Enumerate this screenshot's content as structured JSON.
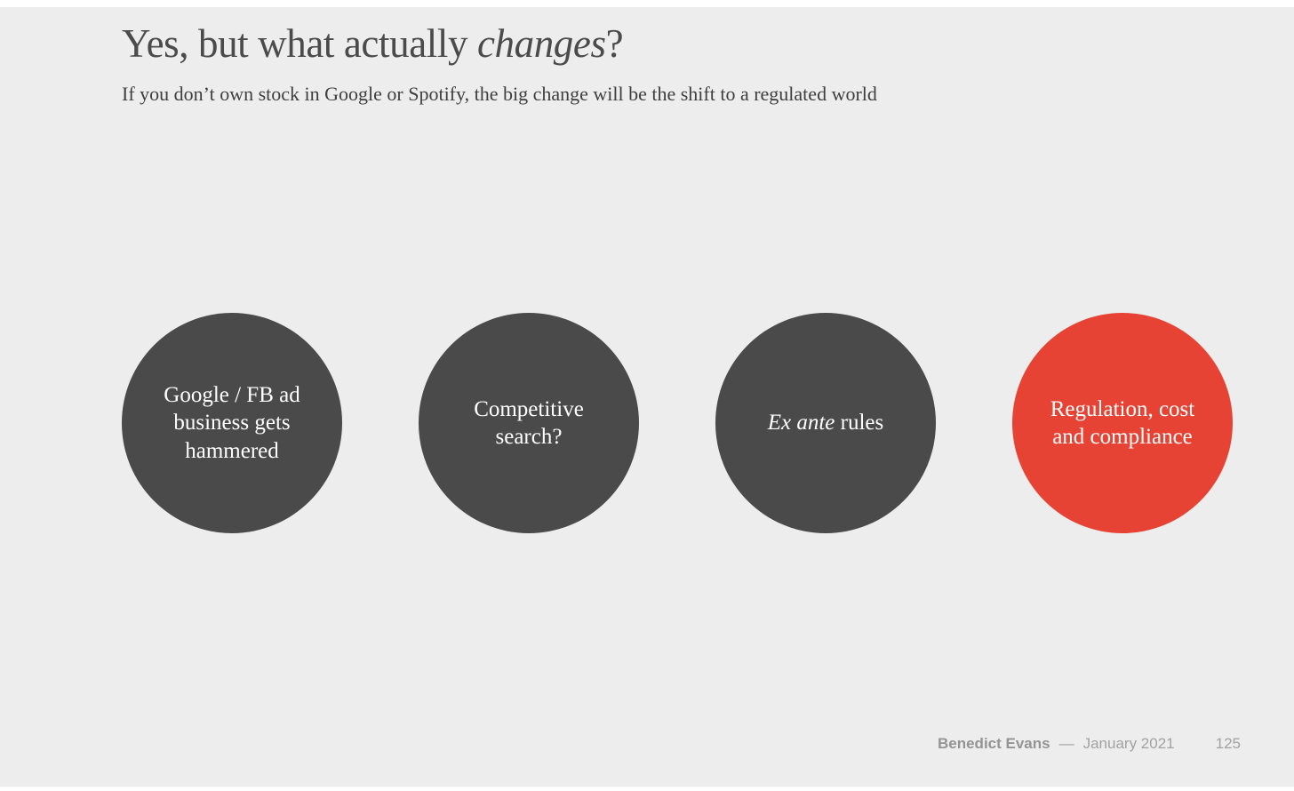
{
  "slide": {
    "title": {
      "lead": "Yes, but what actually ",
      "italic": "changes",
      "tail": "?"
    },
    "subtitle": "If you don’t own stock in Google or Spotify, the big change will be the shift to a regulated world",
    "circles": [
      {
        "label": "Google / FB ad business gets hammered",
        "color": "#4a4a4a"
      },
      {
        "label": "Competitive search?",
        "color": "#4a4a4a"
      },
      {
        "italic": "Ex ante",
        "label": " rules",
        "color": "#4a4a4a"
      },
      {
        "label": "Regulation, cost and compliance",
        "color": "#e64334"
      }
    ],
    "footer": {
      "author": "Benedict Evans",
      "dash": "—",
      "date": "January 2021",
      "page": "125"
    },
    "colors": {
      "background": "#eeedee",
      "circle_dark": "#4a4a4a",
      "circle_red": "#e64334",
      "title_text": "#4b4b4b",
      "footer_text": "#a2a2a2"
    }
  }
}
